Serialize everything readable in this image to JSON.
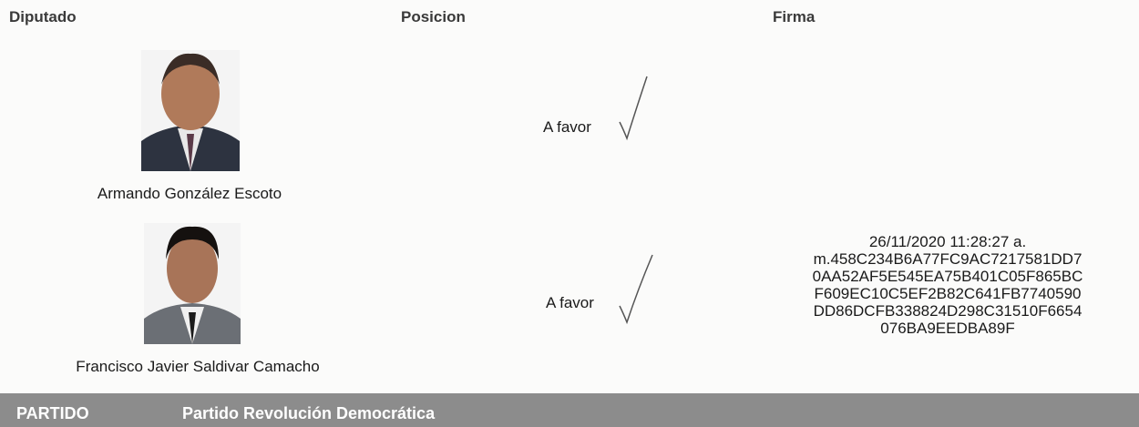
{
  "header": {
    "columns": [
      "Diputado",
      "Posicion",
      "Firma"
    ]
  },
  "rows": [
    {
      "name": "Armando González Escoto",
      "position": "A favor"
    },
    {
      "name": "Francisco Javier Saldivar Camacho",
      "position": "A favor",
      "signature": [
        "26/11/2020 11:28:27 a.",
        "m.458C234B6A77FC9AC7217581DD7",
        "0AA52AF5E545EA75B401C05F865BC",
        "F609EC10C5EF2B82C641FB7740590",
        "DD86DCFB338824D298C31510F6654",
        "076BA9EEDBA89F"
      ]
    }
  ],
  "footer": {
    "label": "PARTIDO",
    "party": "Partido Revolución Democrática"
  }
}
